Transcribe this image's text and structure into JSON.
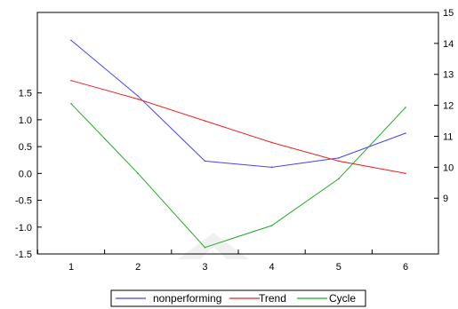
{
  "chart_data": {
    "type": "line",
    "title": "",
    "xlabel": "",
    "ylabel": "",
    "categories": [
      "1",
      "2",
      "3",
      "4",
      "5",
      "6"
    ],
    "left_axis": {
      "ylim": [
        -1.5,
        3.0
      ],
      "ticks": [
        -1.5,
        -1.0,
        -0.5,
        0.0,
        0.5,
        1.0,
        1.5
      ],
      "tick_labels": [
        "-1.5",
        "-1.0",
        "-0.5",
        "0.0",
        "0.5",
        "1.0",
        "1.5"
      ]
    },
    "right_axis": {
      "ylim": [
        7.2,
        15.0
      ],
      "ticks": [
        9,
        10,
        11,
        12,
        13,
        14,
        15
      ],
      "tick_labels": [
        "9",
        "10",
        "11",
        "12",
        "13",
        "14",
        "15"
      ]
    },
    "series": [
      {
        "name": "nonperforming",
        "axis": "right",
        "color": "#4444ee",
        "values": [
          14.1,
          12.3,
          10.2,
          10.0,
          10.3,
          11.1
        ]
      },
      {
        "name": "Trend",
        "axis": "right",
        "color": "#ee2222",
        "values": [
          12.8,
          12.2,
          11.5,
          10.8,
          10.2,
          9.8
        ]
      },
      {
        "name": "Cycle",
        "axis": "left",
        "color": "#22aa22",
        "values": [
          1.3,
          0.0,
          -1.38,
          -0.97,
          -0.1,
          1.23
        ]
      }
    ],
    "grid": false,
    "legend_position": "bottom-center",
    "watermark": "logo"
  }
}
